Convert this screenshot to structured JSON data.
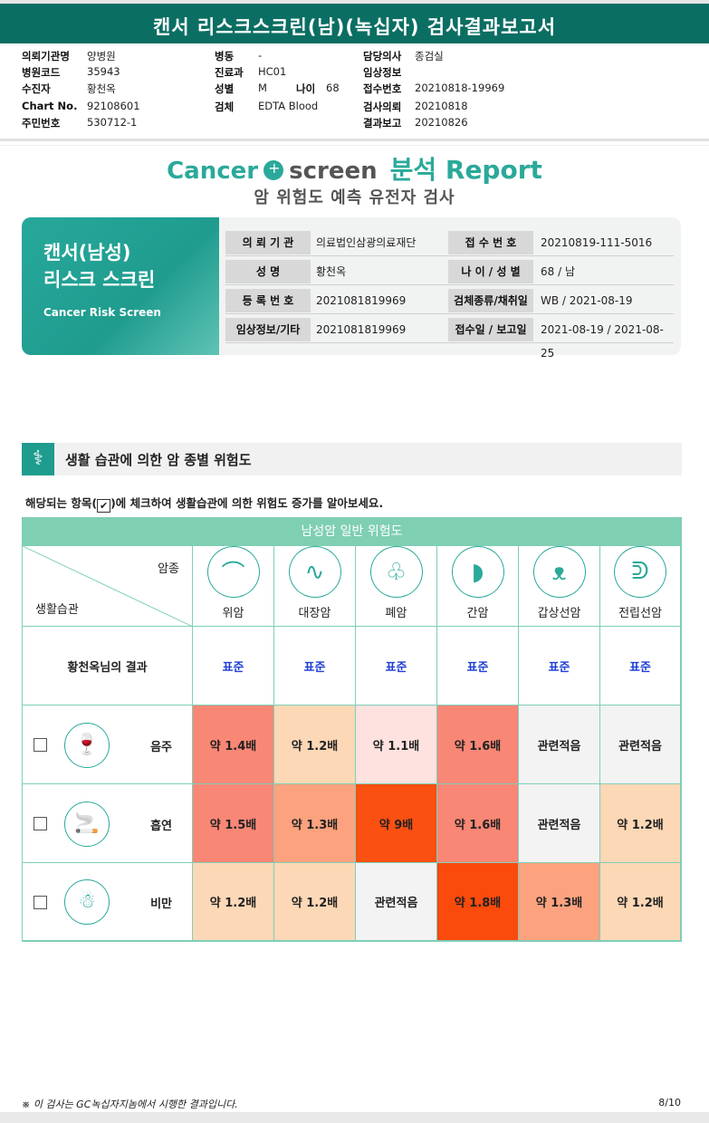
{
  "header": {
    "title": "캔서 리스크스크린(남)(녹십자) 검사결과보고서"
  },
  "meta": {
    "col1": [
      {
        "k": "의뢰기관명",
        "v": "양병원"
      },
      {
        "k": "병원코드",
        "v": "35943"
      },
      {
        "k": "수진자",
        "v": "황천옥"
      },
      {
        "k": "Chart No.",
        "v": "92108601"
      },
      {
        "k": "주민번호",
        "v": "530712-1"
      }
    ],
    "col2": [
      {
        "k": "병동",
        "v": "-"
      },
      {
        "k": "진료과",
        "v": "HC01"
      },
      {
        "k": "성별",
        "v": "M"
      },
      {
        "k": "검체",
        "v": "EDTA Blood"
      }
    ],
    "age": {
      "k": "나이",
      "v": "68"
    },
    "col3": [
      {
        "k": "담당의사",
        "v": "종검실"
      },
      {
        "k": "임상정보",
        "v": ""
      },
      {
        "k": "접수번호",
        "v": "20210818-19969"
      },
      {
        "k": "검사의뢰",
        "v": "20210818"
      },
      {
        "k": "결과보고",
        "v": "20210826"
      }
    ]
  },
  "brand": {
    "part1": "Cancer",
    "part2": "screen",
    "part3": "분석 Report",
    "subtitle": "암 위험도 예측 유전자 검사"
  },
  "card": {
    "title_line1": "캔서(남성)",
    "title_line2": "리스크 스크린",
    "title_en": "Cancer Risk Screen",
    "rows": [
      {
        "l1": "의 뢰 기 관",
        "v1": "의료법인삼광의료재단",
        "l2": "접 수 번 호",
        "v2": "20210819-111-5016"
      },
      {
        "l1": "성 명",
        "v1": "황천옥",
        "l2": "나 이 / 성 별",
        "v2": "68 / 남"
      },
      {
        "l1": "등 록 번 호",
        "v1": "2021081819969",
        "l2": "검체종류/채취일",
        "v2": "WB / 2021-08-19"
      },
      {
        "l1": "임상정보/기타",
        "v1": "2021081819969",
        "l2": "접수일 / 보고일",
        "v2": "2021-08-19 / 2021-08-25"
      }
    ]
  },
  "section": {
    "title": "생활 습관에 의한 암 종별 위험도"
  },
  "instruction": {
    "before": "해당되는 항목(",
    "check": "✔",
    "after": ")에 체크하여 생활습관에 의한 위험도 증가를 알아보세요."
  },
  "table": {
    "title": "남성암 일반 위험도",
    "corner_top": "암종",
    "corner_bottom": "생활습관",
    "cancers": [
      {
        "name": "위암",
        "icon": "stomach-icon",
        "glyph": "⌒"
      },
      {
        "name": "대장암",
        "icon": "colon-icon",
        "glyph": "∿"
      },
      {
        "name": "폐암",
        "icon": "lung-icon",
        "glyph": "♧"
      },
      {
        "name": "간암",
        "icon": "liver-icon",
        "glyph": "◗"
      },
      {
        "name": "갑상선암",
        "icon": "thyroid-icon",
        "glyph": "ᴥ"
      },
      {
        "name": "전립선암",
        "icon": "prostate-icon",
        "glyph": "ᕲ"
      }
    ],
    "result_label": "황천옥님의 결과",
    "results": [
      "표준",
      "표준",
      "표준",
      "표준",
      "표준",
      "표준"
    ],
    "habits": [
      {
        "name": "음주",
        "icon": "alcohol-icon",
        "glyph": "🍷",
        "cells": [
          {
            "text": "약 1.4배",
            "color": "#f98776"
          },
          {
            "text": "약 1.2배",
            "color": "#fdd8b6"
          },
          {
            "text": "약 1.1배",
            "color": "#fde2df"
          },
          {
            "text": "약 1.6배",
            "color": "#f98776"
          },
          {
            "text": "관련적음",
            "color": "#f3f3f3"
          },
          {
            "text": "관련적음",
            "color": "#f3f3f3"
          }
        ]
      },
      {
        "name": "흡연",
        "icon": "smoking-icon",
        "glyph": "🚬",
        "cells": [
          {
            "text": "약 1.5배",
            "color": "#f98776"
          },
          {
            "text": "약 1.3배",
            "color": "#fca27e"
          },
          {
            "text": "약 9배",
            "color": "#fa5011"
          },
          {
            "text": "약 1.6배",
            "color": "#f98776"
          },
          {
            "text": "관련적음",
            "color": "#f3f3f3"
          },
          {
            "text": "약 1.2배",
            "color": "#fdd8b6"
          }
        ]
      },
      {
        "name": "비만",
        "icon": "obesity-icon",
        "glyph": "☃",
        "cells": [
          {
            "text": "약 1.2배",
            "color": "#fdd8b6"
          },
          {
            "text": "약 1.2배",
            "color": "#fdd8b6"
          },
          {
            "text": "관련적음",
            "color": "#f3f3f3"
          },
          {
            "text": "약 1.8배",
            "color": "#fa4a0c"
          },
          {
            "text": "약 1.3배",
            "color": "#fca27e"
          },
          {
            "text": "약 1.2배",
            "color": "#fdd8b6"
          }
        ]
      }
    ]
  },
  "footer": {
    "note": "※ 이 검사는 GC녹십자지놈에서 시행한 결과입니다.",
    "page": "8/10"
  },
  "colors": {
    "brand": "#2aa99a",
    "header": "#0b6e63",
    "table_head": "#7fcfb3",
    "standard": "#1f3fd6"
  }
}
